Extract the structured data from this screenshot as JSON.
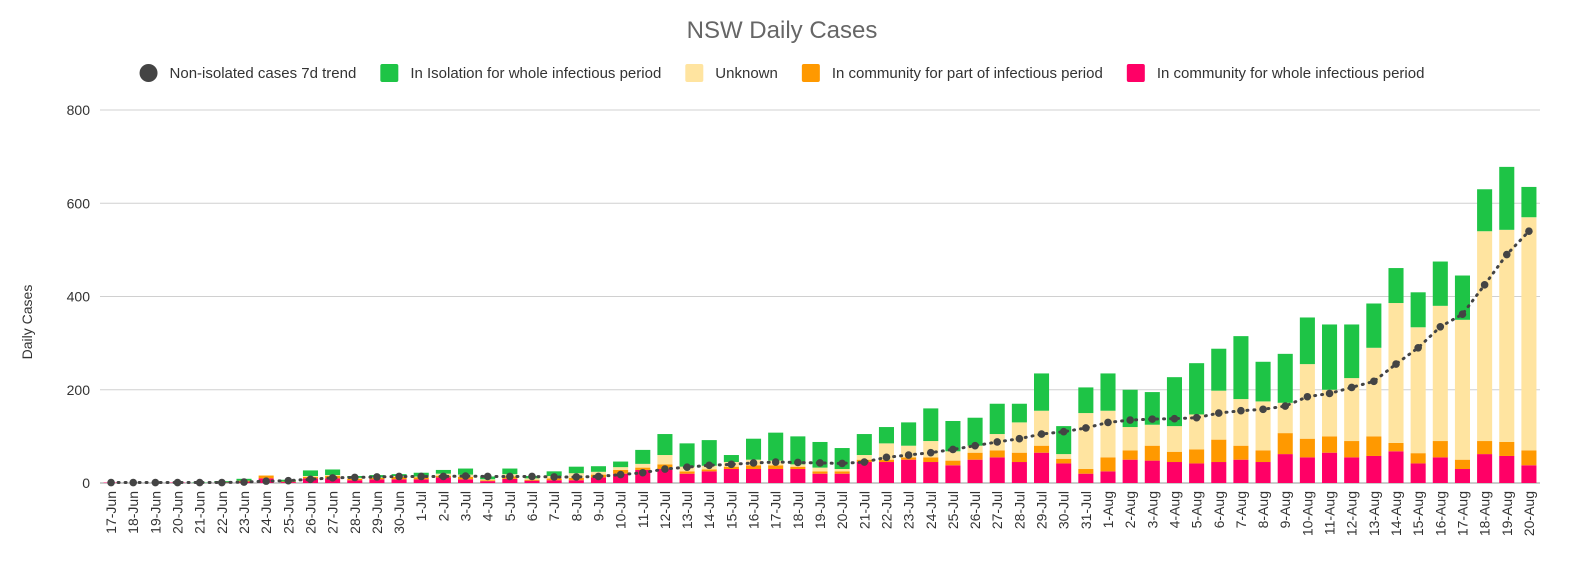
{
  "chart_data": {
    "type": "bar",
    "title": "NSW Daily Cases",
    "ylabel": "Daily Cases",
    "xlabel": "",
    "ylim": [
      0,
      800
    ],
    "yticks": [
      0,
      200,
      400,
      600,
      800
    ],
    "grid": true,
    "legend_position": "top",
    "categories": [
      "17-Jun",
      "18-Jun",
      "19-Jun",
      "20-Jun",
      "21-Jun",
      "22-Jun",
      "23-Jun",
      "24-Jun",
      "25-Jun",
      "26-Jun",
      "27-Jun",
      "28-Jun",
      "29-Jun",
      "30-Jun",
      "1-Jul",
      "2-Jul",
      "3-Jul",
      "4-Jul",
      "5-Jul",
      "6-Jul",
      "7-Jul",
      "8-Jul",
      "9-Jul",
      "10-Jul",
      "11-Jul",
      "12-Jul",
      "13-Jul",
      "14-Jul",
      "15-Jul",
      "16-Jul",
      "17-Jul",
      "18-Jul",
      "19-Jul",
      "20-Jul",
      "21-Jul",
      "22-Jul",
      "23-Jul",
      "24-Jul",
      "25-Jul",
      "26-Jul",
      "27-Jul",
      "28-Jul",
      "29-Jul",
      "30-Jul",
      "31-Jul",
      "1-Aug",
      "2-Aug",
      "3-Aug",
      "4-Aug",
      "5-Aug",
      "6-Aug",
      "7-Aug",
      "8-Aug",
      "9-Aug",
      "10-Aug",
      "11-Aug",
      "12-Aug",
      "13-Aug",
      "14-Aug",
      "15-Aug",
      "16-Aug",
      "17-Aug",
      "18-Aug",
      "19-Aug",
      "20-Aug"
    ],
    "series": [
      {
        "name": "In community for whole infectious period",
        "color": "#ff0066",
        "values": [
          1,
          0,
          0,
          1,
          0,
          1,
          3,
          10,
          2,
          10,
          10,
          6,
          8,
          8,
          8,
          12,
          8,
          4,
          9,
          5,
          6,
          6,
          12,
          20,
          28,
          30,
          20,
          25,
          30,
          30,
          30,
          30,
          20,
          20,
          45,
          45,
          50,
          45,
          38,
          50,
          55,
          45,
          65,
          42,
          20,
          25,
          50,
          48,
          45,
          42,
          45,
          50,
          45,
          62,
          55,
          65,
          55,
          58,
          68,
          42,
          55,
          30,
          62,
          58,
          38
        ]
      },
      {
        "name": "In community for part of infectious period",
        "color": "#ff9900",
        "values": [
          0,
          0,
          0,
          0,
          0,
          0,
          2,
          6,
          1,
          3,
          5,
          3,
          3,
          5,
          4,
          3,
          5,
          2,
          5,
          2,
          4,
          5,
          6,
          8,
          5,
          10,
          5,
          4,
          5,
          8,
          8,
          5,
          5,
          5,
          5,
          5,
          5,
          10,
          10,
          15,
          15,
          20,
          15,
          10,
          10,
          30,
          20,
          32,
          22,
          30,
          48,
          30,
          25,
          45,
          40,
          35,
          35,
          42,
          18,
          22,
          35,
          20,
          28,
          30,
          32
        ]
      },
      {
        "name": "Unknown",
        "color": "#ffe4a0",
        "values": [
          0,
          0,
          0,
          0,
          0,
          0,
          0,
          0,
          0,
          2,
          2,
          2,
          1,
          2,
          2,
          5,
          5,
          2,
          5,
          3,
          5,
          10,
          6,
          6,
          8,
          20,
          10,
          8,
          10,
          12,
          10,
          5,
          8,
          5,
          10,
          35,
          25,
          35,
          20,
          15,
          35,
          65,
          75,
          10,
          120,
          100,
          50,
          45,
          55,
          75,
          105,
          100,
          105,
          65,
          160,
          100,
          135,
          190,
          300,
          270,
          290,
          300,
          450,
          455,
          500
        ]
      },
      {
        "name": "In Isolation for whole infectious period",
        "color": "#1ec446",
        "values": [
          0,
          0,
          0,
          0,
          1,
          3,
          4,
          0,
          4,
          12,
          12,
          4,
          5,
          4,
          8,
          8,
          13,
          6,
          12,
          5,
          10,
          14,
          12,
          12,
          30,
          45,
          50,
          55,
          15,
          45,
          60,
          60,
          55,
          45,
          45,
          35,
          50,
          70,
          65,
          60,
          65,
          40,
          80,
          60,
          55,
          80,
          80,
          70,
          105,
          110,
          90,
          135,
          85,
          105,
          100,
          140,
          115,
          95,
          75,
          75,
          95,
          95,
          90,
          135,
          65
        ]
      }
    ],
    "trend": {
      "name": "Non-isolated cases 7d trend",
      "color": "#444444",
      "values": [
        1,
        1,
        1,
        1,
        1,
        1,
        2,
        4,
        5,
        8,
        11,
        12,
        13,
        14,
        14,
        14,
        15,
        14,
        14,
        14,
        13,
        13,
        14,
        18,
        22,
        30,
        34,
        38,
        40,
        43,
        45,
        44,
        43,
        42,
        45,
        55,
        60,
        65,
        72,
        80,
        88,
        95,
        105,
        110,
        118,
        130,
        135,
        137,
        138,
        140,
        150,
        155,
        158,
        165,
        185,
        192,
        205,
        218,
        255,
        290,
        335,
        362,
        425,
        490,
        540
      ]
    }
  }
}
